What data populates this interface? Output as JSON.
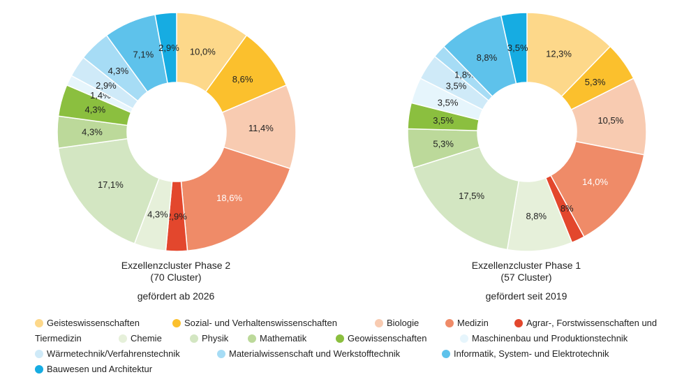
{
  "categories": [
    "Geisteswissenschaften",
    "Sozial- und Verhaltenswissenschaften",
    "Biologie",
    "Medizin",
    "Agrar-, Forstwissenschaften und Tiermedizin",
    "Chemie",
    "Physik",
    "Mathematik",
    "Geowissenschaften",
    "Maschinenbau und Produktionstechnik",
    "Wärmetechnik/Verfahrenstechnik",
    "Materialwissenschaft und Werkstofftechnik",
    "Informatik, System- und Elektrotechnik",
    "Bauwesen und Architektur"
  ],
  "colors": [
    "#FDD88A",
    "#FBC02D",
    "#F8CBB1",
    "#EF8B68",
    "#E3472D",
    "#E6F0DA",
    "#D3E6C2",
    "#BCD99A",
    "#8BBF3F",
    "#E6F5FC",
    "#CFEAF8",
    "#A6DCF5",
    "#5EC2EB",
    "#16ACE2"
  ],
  "label_colors": [
    "#222222",
    "#222222",
    "#222222",
    "#ffffff",
    "#222222",
    "#222222",
    "#222222",
    "#222222",
    "#222222",
    "#222222",
    "#222222",
    "#222222",
    "#222222",
    "#222222"
  ],
  "chart_data": [
    {
      "type": "pie",
      "variant": "donut",
      "title": "Exzellenzcluster Phase 2",
      "title_line2": "(70 Cluster)",
      "subtitle": "gefördert ab 2026",
      "values": [
        10.0,
        8.6,
        11.4,
        18.6,
        2.9,
        4.3,
        17.1,
        4.3,
        4.3,
        1.4,
        2.9,
        4.3,
        7.1,
        2.9
      ],
      "labels": [
        "10,0%",
        "8,6%",
        "11,4%",
        "18,6%",
        "2,9%",
        "4,3%",
        "17,1%",
        "4,3%",
        "4,3%",
        "1,4%",
        "2,9%",
        "4,3%",
        "7,1%",
        "2,9%"
      ]
    },
    {
      "type": "pie",
      "variant": "donut",
      "title": "Exzellenzcluster Phase 1",
      "title_line2": "(57 Cluster)",
      "subtitle": "gefördert seit 2019",
      "values": [
        12.3,
        5.3,
        10.5,
        14.0,
        1.8,
        8.8,
        17.5,
        5.3,
        3.5,
        3.5,
        3.5,
        1.8,
        8.8,
        3.5
      ],
      "labels": [
        "12,3%",
        "5,3%",
        "10,5%",
        "14,0%",
        "1,8%",
        "8,8%",
        "17,5%",
        "5,3%",
        "3,5%",
        "3,5%",
        "3,5%",
        "1,8%",
        "8,8%",
        "3,5%"
      ]
    }
  ],
  "legend_wrap_text": "Tiermedizin"
}
